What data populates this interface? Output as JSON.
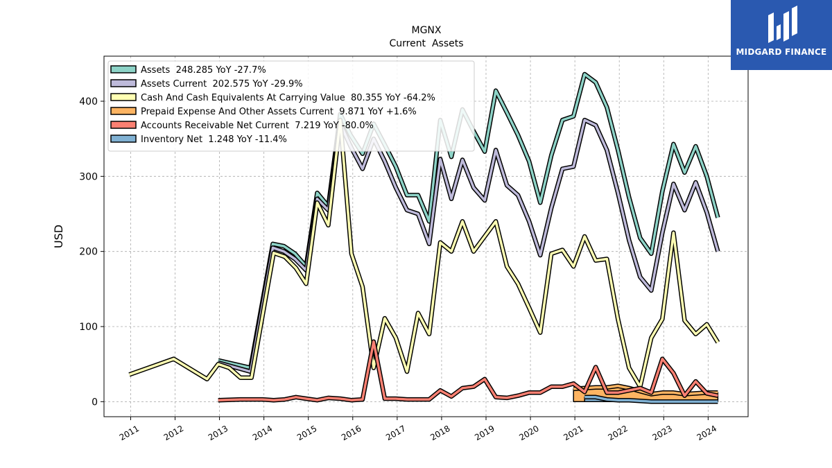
{
  "brand": {
    "name": "MIDGARD FINANCE",
    "bg_color": "#2a59b0"
  },
  "chart_data": {
    "type": "line",
    "title": "MGNX",
    "subtitle": "Current  Assets",
    "ylabel": "USD",
    "xlabel": "",
    "xlim": [
      2010.4,
      2024.9
    ],
    "ylim": [
      -20,
      460
    ],
    "yticks": [
      0,
      100,
      200,
      300,
      400
    ],
    "xticks": [
      2011,
      2012,
      2013,
      2014,
      2015,
      2016,
      2017,
      2018,
      2019,
      2020,
      2021,
      2022,
      2023,
      2024
    ],
    "grid": true,
    "legend_position": "top-left",
    "series": [
      {
        "name": "Assets  248.285 YoY -27.7%",
        "color": "#8dd3c7",
        "x": [
          2012.97,
          2013.7,
          2014.2,
          2014.45,
          2014.7,
          2014.95,
          2015.2,
          2015.45,
          2015.72,
          2015.95,
          2016.22,
          2016.47,
          2016.72,
          2016.97,
          2017.22,
          2017.47,
          2017.72,
          2017.97,
          2018.22,
          2018.47,
          2018.72,
          2018.97,
          2019.22,
          2019.47,
          2019.72,
          2019.97,
          2020.22,
          2020.47,
          2020.72,
          2020.97,
          2021.22,
          2021.47,
          2021.72,
          2021.97,
          2022.22,
          2022.47,
          2022.72,
          2022.97,
          2023.22,
          2023.47,
          2023.72,
          2023.97,
          2024.22
        ],
        "y": [
          55,
          45,
          210,
          207,
          197,
          180,
          278,
          260,
          383,
          355,
          330,
          370,
          342,
          313,
          275,
          275,
          240,
          375,
          326,
          389,
          360,
          333,
          414,
          385,
          355,
          320,
          265,
          328,
          375,
          380,
          436,
          425,
          392,
          335,
          272,
          218,
          197,
          280,
          343,
          305,
          340,
          300,
          245
        ]
      },
      {
        "name": "Assets Current  202.575 YoY -29.9%",
        "color": "#bebada",
        "x": [
          2012.97,
          2013.7,
          2014.2,
          2014.45,
          2014.7,
          2014.95,
          2015.2,
          2015.45,
          2015.72,
          2015.95,
          2016.22,
          2016.47,
          2016.72,
          2016.97,
          2017.22,
          2017.47,
          2017.72,
          2017.97,
          2018.22,
          2018.47,
          2018.72,
          2018.97,
          2019.22,
          2019.47,
          2019.72,
          2019.97,
          2020.22,
          2020.47,
          2020.72,
          2020.97,
          2021.22,
          2021.47,
          2021.72,
          2021.97,
          2022.22,
          2022.47,
          2022.72,
          2022.97,
          2023.22,
          2023.47,
          2023.72,
          2023.97,
          2024.22
        ],
        "y": [
          52,
          40,
          205,
          200,
          190,
          175,
          270,
          255,
          370,
          340,
          310,
          350,
          320,
          285,
          255,
          250,
          210,
          323,
          270,
          322,
          285,
          268,
          335,
          288,
          275,
          240,
          195,
          258,
          310,
          313,
          375,
          368,
          335,
          278,
          215,
          166,
          148,
          225,
          290,
          255,
          292,
          252,
          200
        ]
      },
      {
        "name": "Cash And Cash Equivalents At Carrying Value  80.355 YoY -64.2%",
        "color": "#ffffb3",
        "x": [
          2010.97,
          2011.97,
          2012.72,
          2012.97,
          2013.22,
          2013.47,
          2013.72,
          2013.97,
          2014.22,
          2014.47,
          2014.72,
          2014.95,
          2015.2,
          2015.45,
          2015.72,
          2015.97,
          2016.22,
          2016.47,
          2016.72,
          2016.97,
          2017.22,
          2017.47,
          2017.72,
          2017.97,
          2018.22,
          2018.47,
          2018.72,
          2018.97,
          2019.22,
          2019.47,
          2019.72,
          2019.97,
          2020.22,
          2020.47,
          2020.72,
          2020.97,
          2021.22,
          2021.47,
          2021.72,
          2021.97,
          2022.22,
          2022.47,
          2022.72,
          2022.97,
          2023.22,
          2023.47,
          2023.72,
          2023.97,
          2024.22
        ],
        "y": [
          36,
          57,
          30,
          50,
          45,
          32,
          32,
          115,
          198,
          193,
          178,
          157,
          265,
          235,
          375,
          197,
          153,
          45,
          111,
          85,
          40,
          118,
          90,
          212,
          200,
          240,
          200,
          220,
          240,
          180,
          157,
          125,
          92,
          197,
          202,
          180,
          220,
          188,
          190,
          110,
          45,
          20,
          85,
          110,
          225,
          108,
          90,
          103,
          79
        ]
      },
      {
        "name": "Prepaid Expense And Other Assets Current  9.871 YoY +1.6%",
        "color": "#fdb462",
        "fill": true,
        "x": [
          2020.97,
          2021.22,
          2021.47,
          2021.72,
          2021.97,
          2022.22,
          2022.47,
          2022.72,
          2022.97,
          2023.22,
          2023.47,
          2023.72,
          2023.97,
          2024.22
        ],
        "y": [
          17,
          18,
          19,
          19,
          21,
          18,
          14,
          10,
          12,
          12,
          10,
          11,
          12,
          12
        ]
      },
      {
        "name": "Accounts Receivable Net Current  7.219 YoY -80.0%",
        "color": "#fb8072",
        "x": [
          2012.97,
          2013.47,
          2013.72,
          2013.97,
          2014.22,
          2014.47,
          2014.72,
          2014.95,
          2015.2,
          2015.45,
          2015.72,
          2015.97,
          2016.22,
          2016.47,
          2016.72,
          2016.97,
          2017.22,
          2017.47,
          2017.72,
          2017.97,
          2018.22,
          2018.47,
          2018.72,
          2018.97,
          2019.22,
          2019.47,
          2019.72,
          2019.97,
          2020.22,
          2020.47,
          2020.72,
          2020.97,
          2021.22,
          2021.47,
          2021.72,
          2021.97,
          2022.22,
          2022.47,
          2022.72,
          2022.97,
          2023.22,
          2023.47,
          2023.72,
          2023.97,
          2024.22
        ],
        "y": [
          2,
          3,
          3,
          3,
          2,
          3,
          6,
          4,
          2,
          5,
          4,
          2,
          3,
          80,
          4,
          4,
          3,
          3,
          3,
          15,
          7,
          18,
          20,
          30,
          6,
          5,
          8,
          12,
          12,
          20,
          20,
          24,
          13,
          46,
          12,
          12,
          15,
          18,
          12,
          57,
          38,
          8,
          27,
          11,
          8
        ]
      },
      {
        "name": "Inventory Net  1.248 YoY -11.4%",
        "color": "#80b1d3",
        "fill": true,
        "x": [
          2021.22,
          2021.47,
          2021.72,
          2021.97,
          2022.22,
          2022.47,
          2022.72,
          2022.97,
          2023.22,
          2023.47,
          2023.72,
          2023.97,
          2024.22
        ],
        "y": [
          6,
          6,
          3,
          2,
          2,
          1,
          0,
          0,
          0,
          0,
          0,
          0,
          0
        ]
      }
    ]
  }
}
